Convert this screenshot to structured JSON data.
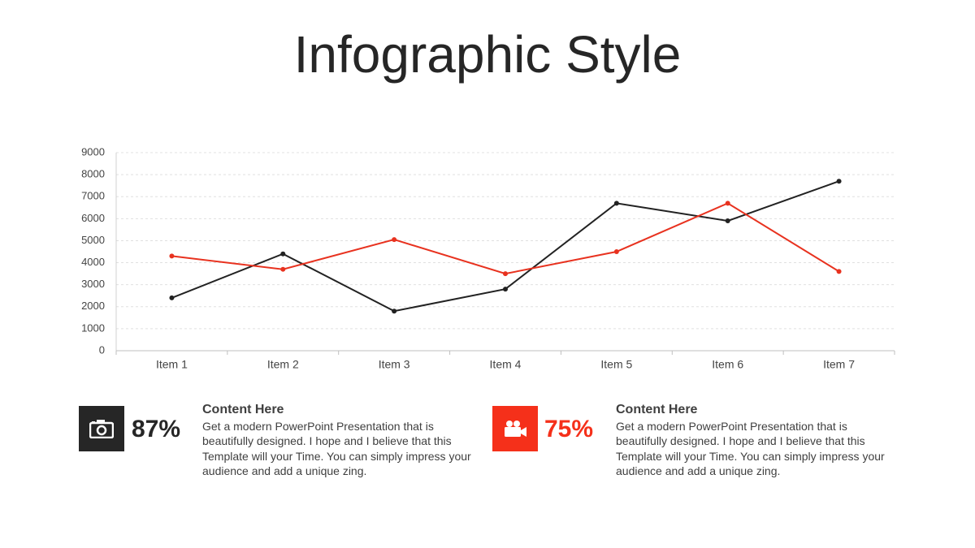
{
  "title": "Infographic Style",
  "chart_data": {
    "type": "line",
    "categories": [
      "Item 1",
      "Item 2",
      "Item 3",
      "Item 4",
      "Item 5",
      "Item 6",
      "Item 7"
    ],
    "series": [
      {
        "color": "#222222",
        "values": [
          2400,
          4400,
          1800,
          2800,
          6700,
          5900,
          7700
        ]
      },
      {
        "color": "#e8321f",
        "values": [
          4300,
          3700,
          5050,
          3500,
          4500,
          6700,
          3600
        ]
      }
    ],
    "ylim": [
      0,
      9000
    ],
    "yticks": [
      0,
      1000,
      2000,
      3000,
      4000,
      5000,
      6000,
      7000,
      8000,
      9000
    ],
    "grid": true
  },
  "cards": [
    {
      "percent": "87%",
      "color": "#262626",
      "heading": "Content  Here",
      "lines": [
        "Get a modern PowerPoint  Presentation that is",
        "beautifully designed. I hope and I believe that this",
        "Template will your Time. You can simply impress your",
        "audience and add a unique zing."
      ]
    },
    {
      "percent": "75%",
      "color": "#f5301a",
      "heading": "Content  Here",
      "lines": [
        "Get a modern PowerPoint  Presentation that is",
        "beautifully designed. I hope and I believe that this",
        "Template will your Time. You can simply impress your",
        "audience and add a unique zing."
      ]
    }
  ]
}
